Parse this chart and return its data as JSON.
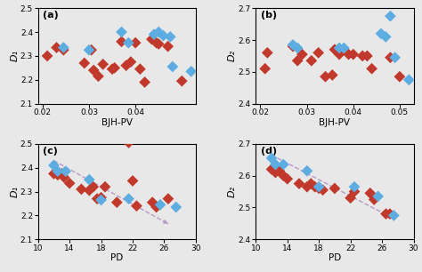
{
  "bg_color": "#e8e8e8",
  "panel_a": {
    "label": "(a)",
    "xlabel": "BJH-PV",
    "ylabel": "D₁",
    "xlim": [
      0.019,
      0.053
    ],
    "ylim": [
      2.1,
      2.5
    ],
    "xticks": [
      0.02,
      0.03,
      0.04
    ],
    "xtick_labels": [
      "0.02",
      "0.03",
      "0.04"
    ],
    "yticks": [
      2.1,
      2.2,
      2.3,
      2.4,
      2.5
    ],
    "red_x": [
      0.021,
      0.023,
      0.0245,
      0.029,
      0.0305,
      0.031,
      0.032,
      0.033,
      0.035,
      0.0355,
      0.037,
      0.038,
      0.039,
      0.04,
      0.041,
      0.042,
      0.0435,
      0.0445,
      0.045,
      0.047,
      0.05
    ],
    "red_y": [
      2.3,
      2.335,
      2.325,
      2.27,
      2.325,
      2.24,
      2.215,
      2.265,
      2.245,
      2.25,
      2.36,
      2.26,
      2.275,
      2.355,
      2.245,
      2.19,
      2.37,
      2.355,
      2.35,
      2.34,
      2.195
    ],
    "cyan_x": [
      0.0245,
      0.03,
      0.037,
      0.0385,
      0.044,
      0.045,
      0.046,
      0.0475,
      0.048,
      0.052
    ],
    "cyan_y": [
      2.335,
      2.325,
      2.4,
      2.355,
      2.39,
      2.4,
      2.385,
      2.38,
      2.255,
      2.235
    ]
  },
  "panel_b": {
    "label": "(b)",
    "xlabel": "BJH-PV",
    "ylabel": "D₂",
    "xlim": [
      0.019,
      0.053
    ],
    "ylim": [
      2.4,
      2.7
    ],
    "xticks": [
      0.02,
      0.03,
      0.04,
      0.05
    ],
    "xtick_labels": [
      "0.02",
      "0.03",
      "0.04",
      "0.05"
    ],
    "yticks": [
      2.4,
      2.5,
      2.6,
      2.7
    ],
    "red_x": [
      0.021,
      0.0215,
      0.027,
      0.028,
      0.029,
      0.031,
      0.0325,
      0.034,
      0.0355,
      0.036,
      0.037,
      0.039,
      0.04,
      0.042,
      0.043,
      0.044,
      0.048,
      0.05
    ],
    "red_y": [
      2.51,
      2.56,
      2.58,
      2.535,
      2.555,
      2.535,
      2.56,
      2.485,
      2.49,
      2.57,
      2.555,
      2.555,
      2.555,
      2.55,
      2.55,
      2.51,
      2.545,
      2.485
    ],
    "cyan_x": [
      0.027,
      0.028,
      0.037,
      0.038,
      0.046,
      0.047,
      0.048,
      0.049,
      0.052
    ],
    "cyan_y": [
      2.585,
      2.575,
      2.575,
      2.575,
      2.62,
      2.61,
      2.675,
      2.545,
      2.475
    ]
  },
  "panel_c": {
    "label": "(c)",
    "xlabel": "PD",
    "ylabel": "D₁",
    "xlim": [
      10,
      30
    ],
    "ylim": [
      2.1,
      2.5
    ],
    "xticks": [
      10,
      14,
      18,
      22,
      26,
      30
    ],
    "xtick_labels": [
      "10",
      "14",
      "18",
      "22",
      "26",
      "30"
    ],
    "yticks": [
      2.1,
      2.2,
      2.3,
      2.4,
      2.5
    ],
    "red_x": [
      12.0,
      12.5,
      13.0,
      13.3,
      14.0,
      15.5,
      16.5,
      17.0,
      17.5,
      18.0,
      18.5,
      20.0,
      21.5,
      22.0,
      22.5,
      24.5,
      25.0,
      26.5
    ],
    "red_y": [
      2.375,
      2.37,
      2.375,
      2.36,
      2.335,
      2.31,
      2.305,
      2.32,
      2.27,
      2.275,
      2.32,
      2.255,
      2.505,
      2.345,
      2.24,
      2.255,
      2.235,
      2.27
    ],
    "cyan_x": [
      12.0,
      12.5,
      13.5,
      16.5,
      18.0,
      21.5,
      25.5,
      27.5
    ],
    "cyan_y": [
      2.41,
      2.385,
      2.385,
      2.35,
      2.265,
      2.27,
      2.245,
      2.235
    ],
    "trend_x": [
      12.0,
      26.5
    ],
    "trend_y": [
      2.43,
      2.165
    ]
  },
  "panel_d": {
    "label": "(d)",
    "xlabel": "PD",
    "ylabel": "D₂",
    "xlim": [
      10,
      30
    ],
    "ylim": [
      2.4,
      2.7
    ],
    "xticks": [
      10,
      14,
      18,
      22,
      26,
      30
    ],
    "xtick_labels": [
      "10",
      "14",
      "18",
      "22",
      "26",
      "30"
    ],
    "yticks": [
      2.4,
      2.5,
      2.6,
      2.7
    ],
    "red_x": [
      12.0,
      12.5,
      13.0,
      13.5,
      14.0,
      15.5,
      16.5,
      17.0,
      17.5,
      18.0,
      18.5,
      20.0,
      22.0,
      22.5,
      24.5,
      25.0,
      26.5,
      27.0
    ],
    "red_y": [
      2.62,
      2.61,
      2.615,
      2.6,
      2.59,
      2.575,
      2.565,
      2.575,
      2.565,
      2.56,
      2.555,
      2.56,
      2.53,
      2.55,
      2.545,
      2.525,
      2.48,
      2.48
    ],
    "cyan_x": [
      12.0,
      12.5,
      13.5,
      16.5,
      18.0,
      22.5,
      25.5,
      27.5
    ],
    "cyan_y": [
      2.655,
      2.635,
      2.635,
      2.615,
      2.565,
      2.565,
      2.535,
      2.475
    ],
    "trend_x": [
      12.0,
      27.5
    ],
    "trend_y": [
      2.665,
      2.465
    ]
  },
  "red_color": "#c0392b",
  "cyan_color": "#5dade2",
  "trend_color": "#b899c8",
  "marker": "D",
  "markersize": 6.5
}
